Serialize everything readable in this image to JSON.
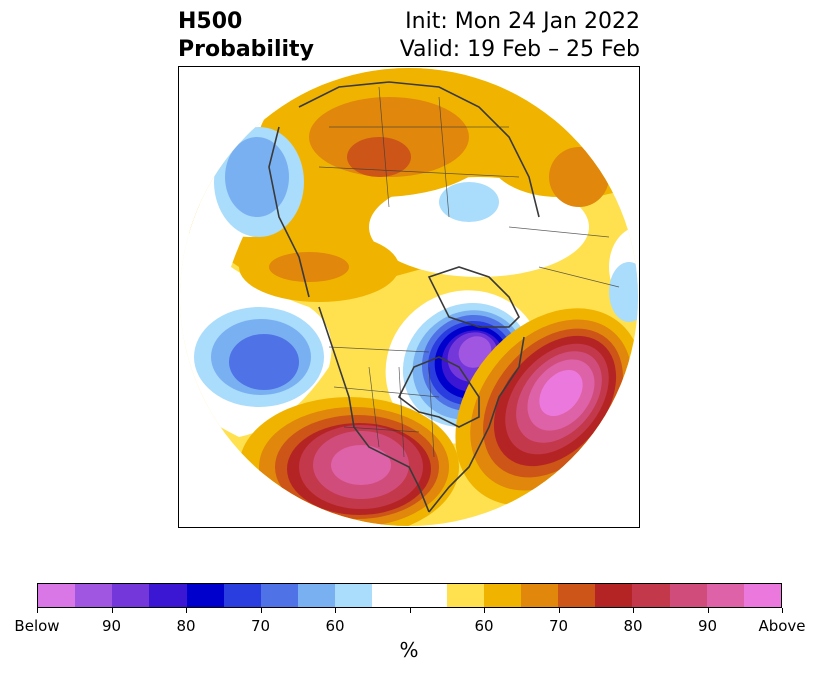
{
  "title": {
    "left_line1": "H500",
    "left_line2": "Probability",
    "right_line1": "Init: Mon 24 Jan 2022",
    "right_line2": "Valid: 19 Feb – 25 Feb"
  },
  "colorbar": {
    "unit": "%",
    "below_colors": [
      "#d977e6",
      "#a056e0",
      "#7438da",
      "#3b17d4",
      "#0000cc",
      "#2a3ee0",
      "#4f73e6",
      "#79b0f2",
      "#aadcfb"
    ],
    "neutral_color": "#ffffff",
    "above_colors": [
      "#ffe14f",
      "#f0b400",
      "#e0870c",
      "#cc5517",
      "#b52424",
      "#c4384c",
      "#d04d7b",
      "#de62a8",
      "#eb78dc"
    ],
    "tick_labels": [
      "Below",
      "90",
      "80",
      "70",
      "60",
      "60",
      "70",
      "80",
      "90",
      "Above"
    ]
  },
  "map": {
    "projection": "north-polar-stereographic",
    "field": "500 hPa height anomaly probability",
    "features": [
      {
        "name": "eastern-north-america-below",
        "category": "below",
        "peak": "90"
      },
      {
        "name": "north-atlantic-above",
        "category": "above",
        "peak": "Above"
      },
      {
        "name": "western-united-states-above",
        "category": "above",
        "peak": "90"
      },
      {
        "name": "eurasia-above",
        "category": "above",
        "peak": "70"
      },
      {
        "name": "north-pacific-below",
        "category": "below",
        "peak": "70"
      },
      {
        "name": "arctic-below",
        "category": "below",
        "peak": "60"
      }
    ]
  }
}
